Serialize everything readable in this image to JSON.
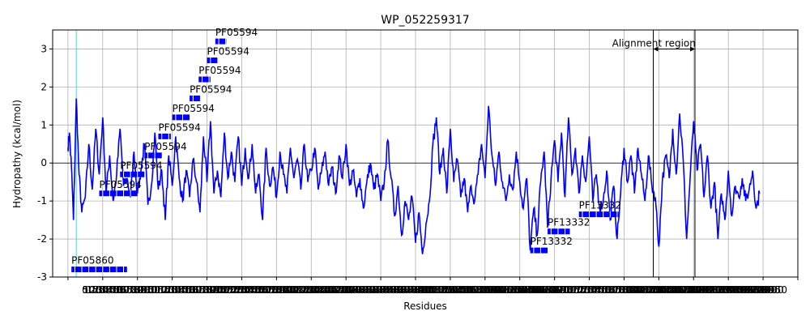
{
  "chart_data": {
    "type": "line",
    "title": "WP_052259317",
    "xlabel": "Residues",
    "ylabel": "Hydropathy (kcal/mol)",
    "xlim": [
      -22,
      1050
    ],
    "ylim": [
      -3,
      3.5
    ],
    "yticks": [
      -3,
      -2,
      -1,
      0,
      1,
      2,
      3
    ],
    "xticks": [
      0,
      50,
      100,
      150,
      200,
      250,
      300,
      350,
      400,
      450,
      500,
      550,
      600,
      650,
      700,
      750,
      800,
      850,
      900,
      950,
      1000,
      1050,
      1100,
      1150,
      1200,
      1250,
      1300,
      1350,
      1400,
      1450,
      1500,
      1550,
      1600,
      1650,
      1700,
      1750,
      1800,
      1850,
      1900,
      1950,
      2000,
      2050,
      2100,
      2150,
      2200,
      2250,
      2300,
      2350,
      2400,
      2450,
      2500,
      2550,
      2600,
      2650,
      2700,
      2750,
      2800,
      2850,
      2900,
      2950,
      3000,
      3050,
      3100,
      3150,
      3200,
      3250,
      3300,
      3350,
      3400,
      3450,
      3500,
      3550,
      3600,
      3650,
      3700,
      3750,
      3800,
      3850,
      3900,
      3950,
      4000,
      4050,
      4100,
      4150,
      4200,
      4250,
      4300,
      4350,
      4400,
      4450,
      4500,
      4550,
      4600,
      4650,
      4700,
      4750,
      4800,
      4850,
      4900,
      4950,
      5000,
      5050,
      5100,
      5150,
      5200,
      5250,
      5300,
      5350,
      5400,
      5450,
      5500,
      5550,
      5600,
      5650,
      5700,
      5750,
      5800,
      5850,
      5900,
      5950,
      6000,
      6050,
      6100,
      6150,
      6200,
      6250,
      6300,
      6350,
      6400,
      6450,
      6500,
      6550,
      6600,
      6650,
      6700,
      6750,
      6800,
      6850,
      6900,
      6950,
      7000,
      7050,
      7100,
      7150,
      7200,
      7250,
      7300,
      7350,
      7400,
      7450,
      7500,
      7550,
      7600,
      7650,
      7700,
      7750,
      7800,
      7850,
      7900,
      7950,
      8000,
      8050,
      8100,
      8150,
      8200,
      8250,
      8300,
      8350,
      8400,
      8450,
      8500,
      8550,
      8600,
      8650,
      8700,
      8750,
      8800,
      8850,
      8900,
      8950,
      9000,
      9050,
      9100,
      9150,
      9200,
      9250,
      9300,
      9350,
      9400,
      9450,
      9500,
      9550,
      9600,
      9650,
      9700,
      9750,
      9800,
      9850,
      9900,
      9950
    ],
    "xtick_labels_note": "tick labels overlap heavily in the original",
    "grid": true,
    "cyan_vline_x": 12,
    "alignment_region": {
      "label": "Alignment region",
      "x_start": 842,
      "x_end": 902
    },
    "series_color": "#0000ff",
    "domain_color": "#0000ff",
    "domains": [
      {
        "label": "PF05860",
        "x_start": 5,
        "x_end": 85,
        "y": -2.8
      },
      {
        "label": "PF05594",
        "x_start": 45,
        "x_end": 100,
        "y": -0.8
      },
      {
        "label": "PF05594",
        "x_start": 75,
        "x_end": 110,
        "y": -0.3
      },
      {
        "label": "PF05594",
        "x_start": 110,
        "x_end": 135,
        "y": 0.2
      },
      {
        "label": "PF05594",
        "x_start": 130,
        "x_end": 148,
        "y": 0.7
      },
      {
        "label": "PF05594",
        "x_start": 150,
        "x_end": 175,
        "y": 1.2
      },
      {
        "label": "PF05594",
        "x_start": 175,
        "x_end": 190,
        "y": 1.7
      },
      {
        "label": "PF05594",
        "x_start": 188,
        "x_end": 205,
        "y": 2.2
      },
      {
        "label": "PF05594",
        "x_start": 200,
        "x_end": 215,
        "y": 2.7
      },
      {
        "label": "PF05594",
        "x_start": 212,
        "x_end": 228,
        "y": 3.2
      },
      {
        "label": "PF13332",
        "x_start": 665,
        "x_end": 690,
        "y": -2.3
      },
      {
        "label": "PF13332",
        "x_start": 690,
        "x_end": 722,
        "y": -1.8
      },
      {
        "label": "PF13332",
        "x_start": 735,
        "x_end": 792,
        "y": -1.35
      }
    ],
    "hydropathy_keypoints": [
      [
        0,
        0.4
      ],
      [
        2,
        0.8
      ],
      [
        5,
        -0.1
      ],
      [
        8,
        -1.5
      ],
      [
        12,
        1.7
      ],
      [
        16,
        -0.3
      ],
      [
        20,
        -1.3
      ],
      [
        25,
        -0.9
      ],
      [
        30,
        0.5
      ],
      [
        35,
        -0.7
      ],
      [
        40,
        0.9
      ],
      [
        45,
        -0.3
      ],
      [
        50,
        1.2
      ],
      [
        55,
        -0.8
      ],
      [
        60,
        0.2
      ],
      [
        65,
        -1.0
      ],
      [
        70,
        -0.3
      ],
      [
        75,
        0.9
      ],
      [
        80,
        -0.6
      ],
      [
        85,
        -0.4
      ],
      [
        90,
        -0.9
      ],
      [
        95,
        0.3
      ],
      [
        100,
        -0.8
      ],
      [
        105,
        -0.2
      ],
      [
        110,
        0.5
      ],
      [
        115,
        -1.1
      ],
      [
        120,
        -0.6
      ],
      [
        125,
        0.8
      ],
      [
        130,
        -0.7
      ],
      [
        135,
        -0.2
      ],
      [
        140,
        -1.5
      ],
      [
        145,
        0.2
      ],
      [
        150,
        -0.6
      ],
      [
        155,
        0.7
      ],
      [
        160,
        -0.4
      ],
      [
        165,
        -1.0
      ],
      [
        170,
        -0.2
      ],
      [
        175,
        -0.9
      ],
      [
        180,
        0.1
      ],
      [
        185,
        -0.5
      ],
      [
        190,
        -1.3
      ],
      [
        195,
        0.7
      ],
      [
        200,
        -0.5
      ],
      [
        205,
        1.1
      ],
      [
        210,
        -0.8
      ],
      [
        215,
        -0.2
      ],
      [
        220,
        -0.9
      ],
      [
        225,
        0.8
      ],
      [
        230,
        -0.4
      ],
      [
        235,
        0.3
      ],
      [
        240,
        -0.5
      ],
      [
        245,
        0.7
      ],
      [
        250,
        -0.6
      ],
      [
        255,
        0.4
      ],
      [
        260,
        -0.4
      ],
      [
        265,
        0.5
      ],
      [
        270,
        -0.8
      ],
      [
        275,
        -0.3
      ],
      [
        280,
        -1.5
      ],
      [
        285,
        0.4
      ],
      [
        290,
        -0.6
      ],
      [
        295,
        -0.1
      ],
      [
        300,
        -0.9
      ],
      [
        305,
        0.3
      ],
      [
        310,
        -0.3
      ],
      [
        315,
        -0.8
      ],
      [
        320,
        0.4
      ],
      [
        325,
        -0.4
      ],
      [
        330,
        0.1
      ],
      [
        335,
        -0.7
      ],
      [
        340,
        0.5
      ],
      [
        345,
        -0.5
      ],
      [
        350,
        -0.2
      ],
      [
        355,
        0.4
      ],
      [
        360,
        -0.7
      ],
      [
        365,
        -0.2
      ],
      [
        370,
        0.3
      ],
      [
        375,
        -0.6
      ],
      [
        380,
        -0.1
      ],
      [
        385,
        -0.8
      ],
      [
        390,
        0.2
      ],
      [
        395,
        -0.4
      ],
      [
        400,
        0.5
      ],
      [
        405,
        -0.6
      ],
      [
        410,
        -0.2
      ],
      [
        415,
        -0.9
      ],
      [
        420,
        -0.4
      ],
      [
        425,
        -1.2
      ],
      [
        430,
        -0.5
      ],
      [
        435,
        0.0
      ],
      [
        440,
        -0.7
      ],
      [
        445,
        -0.3
      ],
      [
        450,
        -1.0
      ],
      [
        455,
        -0.5
      ],
      [
        460,
        0.6
      ],
      [
        465,
        -0.4
      ],
      [
        470,
        -1.4
      ],
      [
        475,
        -0.6
      ],
      [
        480,
        -1.9
      ],
      [
        485,
        -1.0
      ],
      [
        490,
        -1.5
      ],
      [
        495,
        -0.9
      ],
      [
        500,
        -2.1
      ],
      [
        505,
        -1.3
      ],
      [
        510,
        -2.4
      ],
      [
        515,
        -1.6
      ],
      [
        520,
        -1.0
      ],
      [
        525,
        0.5
      ],
      [
        530,
        1.2
      ],
      [
        535,
        -0.3
      ],
      [
        540,
        0.4
      ],
      [
        545,
        -0.8
      ],
      [
        550,
        0.9
      ],
      [
        555,
        -0.5
      ],
      [
        560,
        0.1
      ],
      [
        565,
        -0.9
      ],
      [
        570,
        -0.4
      ],
      [
        575,
        -1.3
      ],
      [
        580,
        -0.6
      ],
      [
        585,
        -1.0
      ],
      [
        590,
        -0.3
      ],
      [
        595,
        0.5
      ],
      [
        600,
        -0.4
      ],
      [
        605,
        1.5
      ],
      [
        610,
        0.2
      ],
      [
        615,
        -0.6
      ],
      [
        620,
        0.3
      ],
      [
        625,
        -0.5
      ],
      [
        630,
        -1.0
      ],
      [
        635,
        -0.3
      ],
      [
        640,
        -0.7
      ],
      [
        645,
        0.3
      ],
      [
        650,
        -0.5
      ],
      [
        655,
        -1.2
      ],
      [
        660,
        -0.4
      ],
      [
        665,
        -2.3
      ],
      [
        670,
        -1.2
      ],
      [
        675,
        -1.9
      ],
      [
        680,
        -0.5
      ],
      [
        685,
        0.3
      ],
      [
        690,
        -1.7
      ],
      [
        695,
        -0.4
      ],
      [
        700,
        0.6
      ],
      [
        705,
        -0.5
      ],
      [
        710,
        0.8
      ],
      [
        715,
        -0.9
      ],
      [
        720,
        1.2
      ],
      [
        725,
        -0.3
      ],
      [
        730,
        0.4
      ],
      [
        735,
        -0.8
      ],
      [
        740,
        0.2
      ],
      [
        745,
        -0.5
      ],
      [
        750,
        0.7
      ],
      [
        755,
        -1.0
      ],
      [
        760,
        -0.3
      ],
      [
        765,
        -1.2
      ],
      [
        770,
        -1.0
      ],
      [
        775,
        -0.2
      ],
      [
        780,
        -1.5
      ],
      [
        785,
        -0.6
      ],
      [
        790,
        -2.0
      ],
      [
        795,
        -0.8
      ],
      [
        800,
        0.4
      ],
      [
        805,
        -0.5
      ],
      [
        810,
        0.2
      ],
      [
        815,
        -0.8
      ],
      [
        820,
        0.4
      ],
      [
        825,
        -0.3
      ],
      [
        830,
        -1.0
      ],
      [
        835,
        0.2
      ],
      [
        840,
        -0.6
      ],
      [
        845,
        -0.9
      ],
      [
        850,
        -2.2
      ],
      [
        855,
        -0.5
      ],
      [
        860,
        0.2
      ],
      [
        865,
        -0.4
      ],
      [
        870,
        0.9
      ],
      [
        875,
        -0.3
      ],
      [
        880,
        1.3
      ],
      [
        885,
        0.1
      ],
      [
        890,
        -2.0
      ],
      [
        895,
        -0.4
      ],
      [
        900,
        1.1
      ],
      [
        905,
        -0.2
      ],
      [
        910,
        0.5
      ],
      [
        915,
        -0.9
      ],
      [
        920,
        0.2
      ],
      [
        925,
        -1.2
      ],
      [
        930,
        -0.5
      ],
      [
        935,
        -2.0
      ],
      [
        940,
        -0.8
      ],
      [
        945,
        -1.5
      ],
      [
        950,
        -0.2
      ],
      [
        955,
        -1.4
      ],
      [
        960,
        -0.6
      ],
      [
        965,
        -0.9
      ],
      [
        970,
        -0.4
      ],
      [
        975,
        -1.0
      ],
      [
        980,
        -0.7
      ],
      [
        985,
        -0.2
      ],
      [
        990,
        -1.2
      ],
      [
        995,
        -0.8
      ]
    ]
  }
}
